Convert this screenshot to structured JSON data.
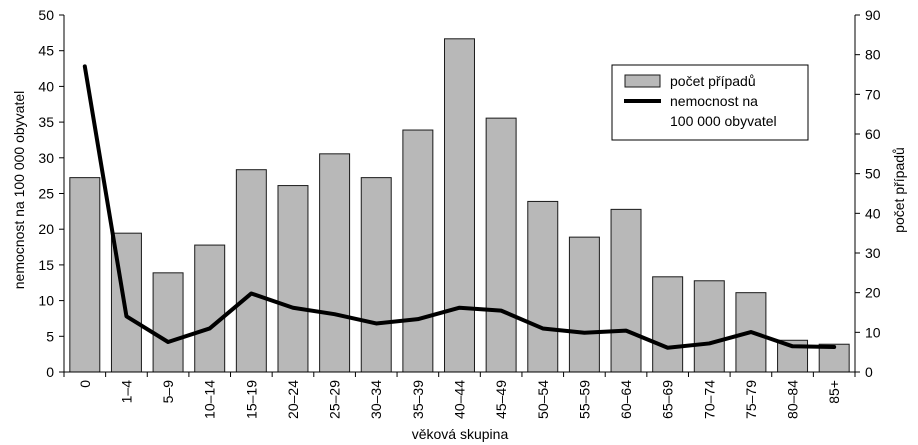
{
  "chart_data": {
    "type": "bar",
    "categories": [
      "0",
      "1–4",
      "5–9",
      "10–14",
      "15–19",
      "20–24",
      "25–29",
      "30–34",
      "35–39",
      "40–44",
      "45–49",
      "50–54",
      "55–59",
      "60–64",
      "65–69",
      "70–74",
      "75–79",
      "80–84",
      "85+"
    ],
    "series": [
      {
        "name": "počet případů",
        "type": "bar",
        "axis": "right",
        "values": [
          49,
          35,
          25,
          32,
          51,
          47,
          55,
          49,
          61,
          84,
          64,
          43,
          34,
          41,
          24,
          23,
          20,
          8,
          7
        ]
      },
      {
        "name": "nemocnost na 100 000 obyvatel",
        "type": "line",
        "axis": "left",
        "values": [
          42.8,
          7.8,
          4.2,
          6.1,
          11.0,
          9.0,
          8.1,
          6.8,
          7.4,
          9.0,
          8.6,
          6.1,
          5.5,
          5.8,
          3.4,
          4.0,
          5.6,
          3.6,
          3.5
        ]
      }
    ],
    "xlabel": "věková skupina",
    "ylabel": "nemocnost na 100 000 obyvatel",
    "y2label": "počet případů",
    "ylim": [
      0,
      50
    ],
    "y2lim": [
      0,
      90
    ],
    "yticks": [
      0,
      5,
      10,
      15,
      20,
      25,
      30,
      35,
      40,
      45,
      50
    ],
    "y2ticks": [
      0,
      10,
      20,
      30,
      40,
      50,
      60,
      70,
      80,
      90
    ],
    "legend": {
      "placement": "top-right",
      "entries": [
        "počet případů",
        "nemocnost na",
        "100 000 obyvatel"
      ]
    },
    "colors": {
      "bar_fill": "#b8b8b8",
      "bar_stroke": "#1a1a1a",
      "line": "#000000",
      "axis": "#000000"
    },
    "grid": false
  }
}
